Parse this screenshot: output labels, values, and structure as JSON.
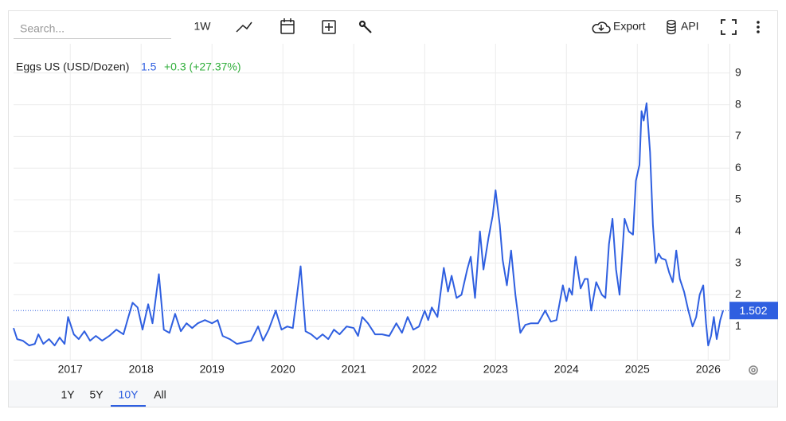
{
  "toolbar": {
    "search_placeholder": "Search...",
    "interval": "1W",
    "export": "Export",
    "api": "API"
  },
  "ranges": [
    "1Y",
    "5Y",
    "10Y",
    "All"
  ],
  "active_range": "10Y",
  "chart_data": {
    "type": "line",
    "title": "Eggs US (USD/Dozen)",
    "last": "1.5",
    "change": "+0.3 (+27.37%)",
    "color": "#2f5fe0",
    "grid": true,
    "xlim": [
      2016.2,
      2026.3
    ],
    "xticks": [
      2017,
      2018,
      2019,
      2020,
      2021,
      2022,
      2023,
      2024,
      2025,
      2026
    ],
    "ylim": [
      0,
      10
    ],
    "yticks": [
      1,
      2,
      3,
      4,
      5,
      6,
      7,
      8,
      9
    ],
    "x": [
      2016.2,
      2016.25,
      2016.33,
      2016.42,
      2016.5,
      2016.55,
      2016.62,
      2016.7,
      2016.78,
      2016.85,
      2016.92,
      2016.97,
      2017.05,
      2017.12,
      2017.2,
      2017.28,
      2017.36,
      2017.45,
      2017.55,
      2017.65,
      2017.75,
      2017.82,
      2017.88,
      2017.95,
      2018.02,
      2018.1,
      2018.16,
      2018.25,
      2018.32,
      2018.4,
      2018.48,
      2018.56,
      2018.64,
      2018.72,
      2018.8,
      2018.9,
      2019.0,
      2019.08,
      2019.15,
      2019.25,
      2019.35,
      2019.45,
      2019.55,
      2019.65,
      2019.72,
      2019.8,
      2019.9,
      2019.98,
      2020.06,
      2020.14,
      2020.25,
      2020.32,
      2020.4,
      2020.48,
      2020.56,
      2020.64,
      2020.72,
      2020.8,
      2020.9,
      2021.0,
      2021.06,
      2021.12,
      2021.2,
      2021.3,
      2021.4,
      2021.5,
      2021.6,
      2021.68,
      2021.76,
      2021.84,
      2021.92,
      2022.0,
      2022.05,
      2022.1,
      2022.18,
      2022.27,
      2022.33,
      2022.38,
      2022.45,
      2022.52,
      2022.6,
      2022.65,
      2022.71,
      2022.78,
      2022.83,
      2022.9,
      2022.96,
      2023.0,
      2023.06,
      2023.1,
      2023.16,
      2023.22,
      2023.28,
      2023.35,
      2023.42,
      2023.5,
      2023.6,
      2023.7,
      2023.78,
      2023.86,
      2023.95,
      2024.0,
      2024.04,
      2024.08,
      2024.13,
      2024.2,
      2024.26,
      2024.3,
      2024.35,
      2024.42,
      2024.5,
      2024.55,
      2024.6,
      2024.65,
      2024.7,
      2024.75,
      2024.82,
      2024.88,
      2024.94,
      2024.98,
      2025.03,
      2025.06,
      2025.09,
      2025.13,
      2025.18,
      2025.22,
      2025.26,
      2025.3,
      2025.34,
      2025.4,
      2025.45,
      2025.5,
      2025.55,
      2025.6,
      2025.66,
      2025.72,
      2025.78,
      2025.83,
      2025.88,
      2025.93,
      2025.97,
      2026.0,
      2026.04,
      2026.08,
      2026.12,
      2026.17,
      2026.21
    ],
    "values": [
      0.95,
      0.6,
      0.55,
      0.4,
      0.45,
      0.75,
      0.45,
      0.6,
      0.4,
      0.65,
      0.45,
      1.3,
      0.75,
      0.6,
      0.85,
      0.55,
      0.7,
      0.55,
      0.7,
      0.9,
      0.75,
      1.3,
      1.75,
      1.6,
      0.9,
      1.7,
      1.1,
      2.65,
      0.9,
      0.8,
      1.4,
      0.85,
      1.1,
      0.95,
      1.1,
      1.2,
      1.1,
      1.2,
      0.7,
      0.6,
      0.45,
      0.5,
      0.55,
      1.0,
      0.55,
      0.9,
      1.5,
      0.9,
      1.0,
      0.95,
      2.9,
      0.85,
      0.75,
      0.6,
      0.75,
      0.6,
      0.9,
      0.75,
      1.0,
      0.95,
      0.7,
      1.3,
      1.1,
      0.75,
      0.75,
      0.7,
      1.1,
      0.8,
      1.3,
      0.9,
      1.0,
      1.5,
      1.2,
      1.6,
      1.3,
      2.85,
      2.1,
      2.6,
      1.9,
      2.0,
      2.8,
      3.2,
      1.9,
      4.0,
      2.8,
      3.8,
      4.5,
      5.3,
      4.2,
      3.1,
      2.3,
      3.4,
      2.0,
      0.8,
      1.05,
      1.1,
      1.1,
      1.5,
      1.15,
      1.2,
      2.3,
      1.8,
      2.2,
      2.0,
      3.2,
      2.2,
      2.5,
      2.5,
      1.5,
      2.4,
      2.0,
      1.9,
      3.6,
      4.4,
      2.8,
      2.0,
      4.4,
      4.0,
      3.9,
      5.6,
      6.1,
      7.8,
      7.5,
      8.05,
      6.5,
      4.2,
      3.0,
      3.3,
      3.15,
      3.1,
      2.7,
      2.4,
      3.4,
      2.5,
      2.1,
      1.5,
      1.0,
      1.3,
      2.0,
      2.3,
      1.1,
      0.4,
      0.7,
      1.3,
      0.6,
      1.2,
      1.502
    ]
  }
}
